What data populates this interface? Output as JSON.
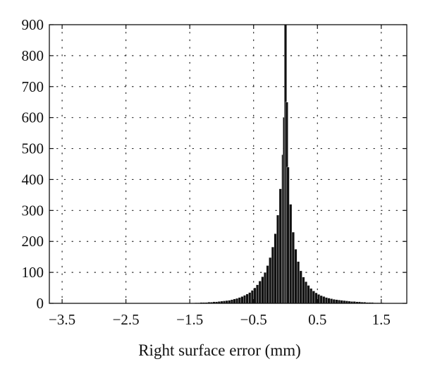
{
  "chart_data": {
    "type": "bar",
    "title": "",
    "xlabel": "Right surface error (mm)",
    "ylabel": "",
    "xlim": [
      -3.7,
      1.9
    ],
    "ylim": [
      0,
      900
    ],
    "x_ticks": [
      -3.5,
      -2.5,
      -1.5,
      -0.5,
      0.5,
      1.5
    ],
    "x_tick_labels": [
      "−3.5",
      "−2.5",
      "−1.5",
      "−0.5",
      "0.5",
      "1.5"
    ],
    "y_ticks": [
      0,
      100,
      200,
      300,
      400,
      500,
      600,
      700,
      800,
      900
    ],
    "y_tick_labels": [
      "0",
      "100",
      "200",
      "300",
      "400",
      "500",
      "600",
      "700",
      "800",
      "900"
    ],
    "grid": true,
    "grid_style": "dotted",
    "bar_color": "#111111",
    "bin_width": 0.04,
    "bins": [
      {
        "x": -1.4,
        "y": 2
      },
      {
        "x": -1.36,
        "y": 2
      },
      {
        "x": -1.32,
        "y": 3
      },
      {
        "x": -1.28,
        "y": 3
      },
      {
        "x": -1.24,
        "y": 3
      },
      {
        "x": -1.2,
        "y": 4
      },
      {
        "x": -1.16,
        "y": 4
      },
      {
        "x": -1.12,
        "y": 5
      },
      {
        "x": -1.08,
        "y": 5
      },
      {
        "x": -1.04,
        "y": 6
      },
      {
        "x": -1.0,
        "y": 7
      },
      {
        "x": -0.96,
        "y": 8
      },
      {
        "x": -0.92,
        "y": 9
      },
      {
        "x": -0.88,
        "y": 10
      },
      {
        "x": -0.84,
        "y": 12
      },
      {
        "x": -0.8,
        "y": 14
      },
      {
        "x": -0.76,
        "y": 16
      },
      {
        "x": -0.72,
        "y": 19
      },
      {
        "x": -0.68,
        "y": 22
      },
      {
        "x": -0.64,
        "y": 26
      },
      {
        "x": -0.6,
        "y": 30
      },
      {
        "x": -0.56,
        "y": 35
      },
      {
        "x": -0.52,
        "y": 42
      },
      {
        "x": -0.48,
        "y": 50
      },
      {
        "x": -0.44,
        "y": 60
      },
      {
        "x": -0.4,
        "y": 72
      },
      {
        "x": -0.36,
        "y": 86
      },
      {
        "x": -0.32,
        "y": 100
      },
      {
        "x": -0.28,
        "y": 122
      },
      {
        "x": -0.24,
        "y": 148
      },
      {
        "x": -0.2,
        "y": 182
      },
      {
        "x": -0.16,
        "y": 225
      },
      {
        "x": -0.12,
        "y": 285
      },
      {
        "x": -0.08,
        "y": 370
      },
      {
        "x": -0.04,
        "y": 480
      },
      {
        "x": -0.02,
        "y": 600
      },
      {
        "x": 0.0,
        "y": 900
      },
      {
        "x": 0.02,
        "y": 650
      },
      {
        "x": 0.04,
        "y": 440
      },
      {
        "x": 0.08,
        "y": 320
      },
      {
        "x": 0.12,
        "y": 230
      },
      {
        "x": 0.16,
        "y": 175
      },
      {
        "x": 0.2,
        "y": 135
      },
      {
        "x": 0.24,
        "y": 105
      },
      {
        "x": 0.28,
        "y": 85
      },
      {
        "x": 0.32,
        "y": 70
      },
      {
        "x": 0.36,
        "y": 58
      },
      {
        "x": 0.4,
        "y": 48
      },
      {
        "x": 0.44,
        "y": 40
      },
      {
        "x": 0.48,
        "y": 34
      },
      {
        "x": 0.52,
        "y": 29
      },
      {
        "x": 0.56,
        "y": 25
      },
      {
        "x": 0.6,
        "y": 22
      },
      {
        "x": 0.64,
        "y": 19
      },
      {
        "x": 0.68,
        "y": 17
      },
      {
        "x": 0.72,
        "y": 15
      },
      {
        "x": 0.76,
        "y": 13
      },
      {
        "x": 0.8,
        "y": 12
      },
      {
        "x": 0.84,
        "y": 11
      },
      {
        "x": 0.88,
        "y": 10
      },
      {
        "x": 0.92,
        "y": 9
      },
      {
        "x": 0.96,
        "y": 8
      },
      {
        "x": 1.0,
        "y": 7
      },
      {
        "x": 1.04,
        "y": 6
      },
      {
        "x": 1.08,
        "y": 6
      },
      {
        "x": 1.12,
        "y": 5
      },
      {
        "x": 1.16,
        "y": 5
      },
      {
        "x": 1.2,
        "y": 4
      },
      {
        "x": 1.24,
        "y": 4
      },
      {
        "x": 1.28,
        "y": 3
      },
      {
        "x": 1.32,
        "y": 3
      },
      {
        "x": 1.36,
        "y": 3
      },
      {
        "x": 1.4,
        "y": 2
      },
      {
        "x": 1.44,
        "y": 2
      },
      {
        "x": 1.48,
        "y": 2
      },
      {
        "x": 1.52,
        "y": 2
      },
      {
        "x": 1.56,
        "y": 1
      },
      {
        "x": 1.6,
        "y": 1
      },
      {
        "x": 1.64,
        "y": 1
      },
      {
        "x": 1.68,
        "y": 1
      },
      {
        "x": 1.72,
        "y": 1
      },
      {
        "x": 1.76,
        "y": 1
      },
      {
        "x": 1.8,
        "y": 1
      },
      {
        "x": 1.84,
        "y": 1
      }
    ]
  }
}
